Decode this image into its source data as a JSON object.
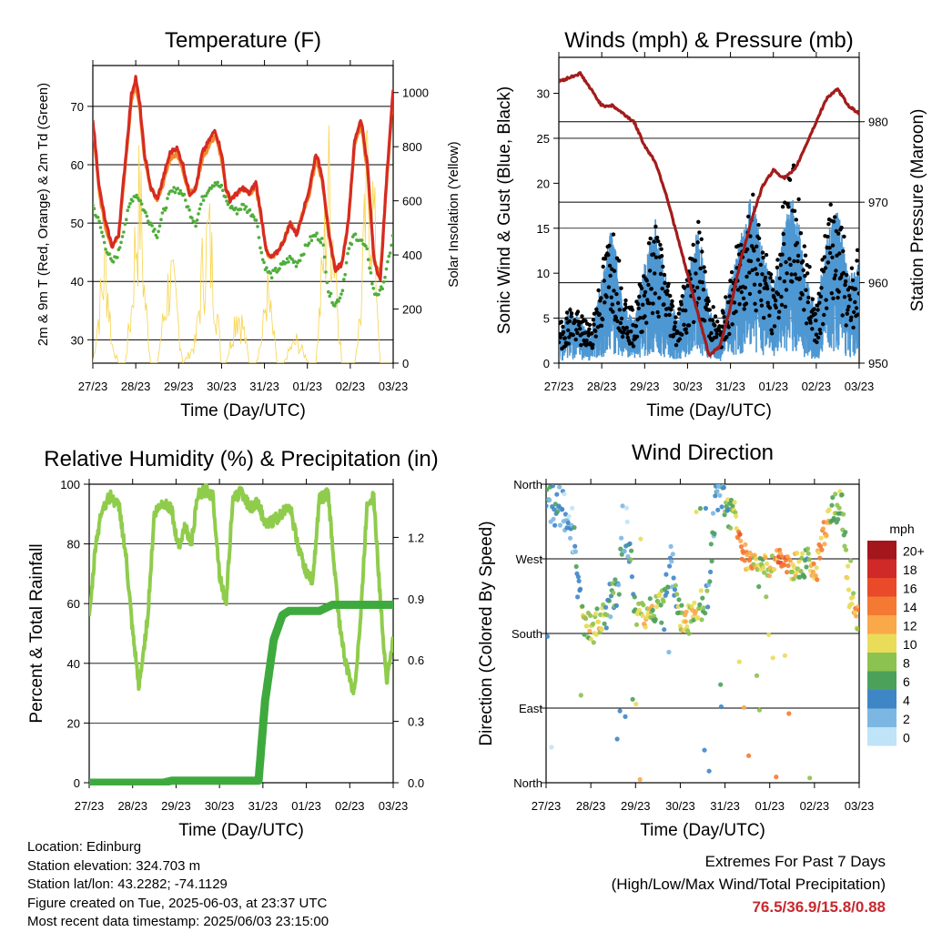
{
  "x_ticks": [
    "27/23",
    "28/23",
    "29/23",
    "30/23",
    "31/23",
    "01/23",
    "02/23",
    "03/23"
  ],
  "xlabel": "Time (Day/UTC)",
  "colors": {
    "temp_red": "#d62b22",
    "temp_orange": "#f08a2c",
    "dewpoint_green": "#4fae3b",
    "insolation_yellow": "#f7d44c",
    "wind_blue": "#4d97d2",
    "gust_black": "#000000",
    "pressure_maroon": "#a31c1c",
    "rh_lightgreen": "#8fcc4c",
    "precip_green": "#3eaa3e"
  },
  "chart_data": [
    {
      "id": "temperature",
      "type": "line",
      "title": "Temperature (F)",
      "ylabel_left": "2m & 9m T (Red, Orange) & 2m Td (Green)",
      "ylabel_right": "Solar Insolation (Yellow)",
      "xlabel": "Time (Day/UTC)",
      "ylim": [
        26,
        77
      ],
      "yticks": [
        30,
        40,
        50,
        60,
        70
      ],
      "y2lim": [
        0,
        1100
      ],
      "y2ticks": [
        0,
        200,
        400,
        600,
        800,
        1000
      ],
      "x": [
        0,
        0.15,
        0.3,
        0.45,
        0.6,
        0.75,
        0.9,
        1.0,
        1.1,
        1.2,
        1.35,
        1.5,
        1.65,
        1.8,
        1.95,
        2.1,
        2.25,
        2.4,
        2.55,
        2.7,
        2.85,
        3.0,
        3.1,
        3.2,
        3.35,
        3.5,
        3.65,
        3.8,
        3.95,
        4.05,
        4.15,
        4.3,
        4.45,
        4.6,
        4.75,
        4.9,
        5.05,
        5.2,
        5.35,
        5.5,
        5.65,
        5.8,
        5.95,
        6.1,
        6.25,
        6.4,
        6.55,
        6.7,
        6.85,
        7.0
      ],
      "series": [
        {
          "name": "2m T",
          "values": [
            68,
            56,
            50,
            46,
            48,
            60,
            72,
            75,
            70,
            62,
            56,
            54,
            58,
            62,
            63,
            60,
            55,
            56,
            62,
            64,
            66,
            62,
            56,
            54,
            55,
            56,
            55,
            57,
            50,
            45,
            44,
            45,
            47,
            50,
            48,
            52,
            56,
            62,
            58,
            48,
            42,
            43,
            50,
            64,
            68,
            60,
            44,
            40,
            58,
            73
          ]
        },
        {
          "name": "9m T",
          "values": [
            67,
            55,
            49,
            46,
            48,
            59,
            71,
            74,
            69,
            61,
            56,
            54,
            57,
            61,
            62,
            59,
            55,
            56,
            61,
            63,
            65,
            61,
            56,
            54,
            55,
            56,
            55,
            56,
            50,
            45,
            44,
            45,
            47,
            50,
            48,
            52,
            55,
            61,
            57,
            48,
            42,
            43,
            50,
            63,
            67,
            59,
            44,
            41,
            57,
            72
          ]
        },
        {
          "name": "2m Td",
          "values": [
            53,
            50,
            46,
            43,
            45,
            50,
            54,
            55,
            54,
            52,
            50,
            48,
            52,
            55,
            56,
            55,
            52,
            50,
            54,
            56,
            57,
            56,
            54,
            53,
            52,
            53,
            52,
            51,
            44,
            42,
            41,
            42,
            43,
            44,
            43,
            45,
            47,
            48,
            47,
            38,
            36,
            38,
            45,
            48,
            47,
            45,
            38,
            38,
            42,
            48
          ]
        },
        {
          "name": "Solar",
          "values": [
            0,
            300,
            550,
            100,
            0,
            0,
            300,
            700,
            900,
            400,
            0,
            0,
            250,
            480,
            300,
            0,
            50,
            120,
            500,
            700,
            400,
            0,
            0,
            100,
            300,
            200,
            0,
            0,
            150,
            400,
            250,
            0,
            0,
            80,
            120,
            60,
            0,
            0,
            500,
            950,
            600,
            0,
            0,
            0,
            300,
            1000,
            800,
            0,
            0,
            0
          ]
        }
      ]
    },
    {
      "id": "winds",
      "type": "scatter",
      "title": "Winds (mph) & Pressure (mb)",
      "ylabel_left": "Sonic Wind & Gust (Blue, Black)",
      "ylabel_right": "Station Pressure (Maroon)",
      "xlabel": "Time (Day/UTC)",
      "ylim": [
        0,
        34
      ],
      "yticks": [
        0,
        5,
        10,
        15,
        20,
        25,
        30
      ],
      "y2lim": [
        950,
        988
      ],
      "y2ticks": [
        950,
        960,
        970,
        980
      ],
      "x": [
        0,
        0.25,
        0.5,
        0.75,
        1.0,
        1.25,
        1.5,
        1.75,
        2.0,
        2.25,
        2.5,
        2.75,
        3.0,
        3.25,
        3.5,
        3.75,
        4.0,
        4.25,
        4.5,
        4.75,
        5.0,
        5.25,
        5.5,
        5.75,
        6.0,
        6.25,
        6.5,
        6.75,
        7.0
      ],
      "series": [
        {
          "name": "Wind",
          "values": [
            2,
            4,
            3,
            2,
            6,
            10,
            4,
            3,
            7,
            10,
            6,
            3,
            6,
            10,
            4,
            2,
            6,
            9,
            12,
            8,
            5,
            10,
            12,
            6,
            4,
            9,
            11,
            6,
            7
          ]
        },
        {
          "name": "Gust",
          "values": [
            4,
            6,
            5,
            4,
            10,
            15,
            8,
            5,
            11,
            15,
            10,
            5,
            10,
            15,
            7,
            4,
            9,
            14,
            19,
            13,
            8,
            17,
            21,
            12,
            6,
            15,
            18,
            10,
            12
          ]
        },
        {
          "name": "Pressure",
          "values": [
            985,
            985.5,
            986,
            984,
            982,
            982,
            981,
            980,
            977,
            975,
            971,
            966,
            961,
            956,
            951,
            952,
            957,
            963,
            968,
            972,
            974,
            973,
            974,
            977,
            980,
            983,
            984,
            982,
            981
          ]
        }
      ]
    },
    {
      "id": "humidity",
      "type": "line",
      "title": "Relative Humidity (%) & Precipitation (in)",
      "ylabel_left": "Percent & Total Rainfall",
      "xlabel": "Time (Day/UTC)",
      "ylim": [
        0,
        100
      ],
      "yticks": [
        0,
        20,
        40,
        60,
        80,
        100
      ],
      "y2lim": [
        0,
        1.46
      ],
      "y2ticks": [
        "0.0",
        "0.3",
        "0.6",
        "0.9",
        "1.2"
      ],
      "x": [
        0,
        0.15,
        0.3,
        0.5,
        0.7,
        0.85,
        1.0,
        1.15,
        1.35,
        1.5,
        1.7,
        1.9,
        2.0,
        2.1,
        2.2,
        2.35,
        2.5,
        2.7,
        2.85,
        3.0,
        3.15,
        3.3,
        3.5,
        3.7,
        3.9,
        4.05,
        4.25,
        4.45,
        4.6,
        4.8,
        5.0,
        5.15,
        5.3,
        5.5,
        5.6,
        5.75,
        5.9,
        6.1,
        6.25,
        6.4,
        6.55,
        6.7,
        6.85,
        7.0
      ],
      "series": [
        {
          "name": "RH",
          "values": [
            54,
            80,
            92,
            96,
            92,
            75,
            50,
            32,
            56,
            90,
            94,
            92,
            82,
            80,
            86,
            80,
            96,
            98,
            96,
            70,
            60,
            94,
            98,
            92,
            94,
            86,
            88,
            90,
            94,
            80,
            70,
            68,
            95,
            97,
            80,
            55,
            40,
            30,
            55,
            94,
            96,
            62,
            34,
            48
          ]
        },
        {
          "name": "Precip",
          "values": [
            0,
            0,
            0,
            0,
            0,
            0,
            0,
            0,
            0,
            0,
            0,
            0.01,
            0.01,
            0.01,
            0.01,
            0.01,
            0.01,
            0.01,
            0.01,
            0.01,
            0.01,
            0.01,
            0.01,
            0.01,
            0.01,
            0.4,
            0.7,
            0.82,
            0.84,
            0.84,
            0.84,
            0.84,
            0.84,
            0.86,
            0.87,
            0.87,
            0.87,
            0.87,
            0.87,
            0.87,
            0.87,
            0.87,
            0.87,
            0.87
          ]
        }
      ]
    },
    {
      "id": "direction",
      "type": "scatter",
      "title": "Wind Direction",
      "ylabel_left": "Direction (Colored By Speed)",
      "xlabel": "Time (Day/UTC)",
      "ylim": [
        0,
        360
      ],
      "ytick_labels": [
        "North",
        "East",
        "South",
        "West",
        "North"
      ],
      "legend_title": "mph",
      "legend_labels": [
        "20+",
        "18",
        "16",
        "14",
        "12",
        "10",
        "8",
        "6",
        "4",
        "2",
        "0"
      ],
      "legend_colors": [
        "#a3161c",
        "#cf2a27",
        "#e84a2a",
        "#f47a33",
        "#f9a84a",
        "#e9dc59",
        "#8cc24f",
        "#4ba15a",
        "#3f86c7",
        "#7cb7e4",
        "#bfe3f7"
      ],
      "x": [
        0,
        0.2,
        0.4,
        0.6,
        0.8,
        1.0,
        1.2,
        1.4,
        1.6,
        1.8,
        2.0,
        2.2,
        2.4,
        2.6,
        2.8,
        3.0,
        3.2,
        3.4,
        3.6,
        3.8,
        4.0,
        4.2,
        4.4,
        4.6,
        4.8,
        5.0,
        5.2,
        5.4,
        5.6,
        5.8,
        6.0,
        6.2,
        6.4,
        6.6,
        6.8,
        7.0
      ],
      "series": [
        {
          "name": "Direction",
          "values": [
            340,
            335,
            330,
            300,
            200,
            185,
            190,
            215,
            235,
            315,
            210,
            195,
            205,
            215,
            270,
            200,
            195,
            210,
            225,
            340,
            335,
            320,
            275,
            270,
            255,
            262,
            270,
            265,
            262,
            270,
            255,
            300,
            330,
            335,
            215,
            200
          ]
        },
        {
          "name": "Speed",
          "values": [
            3,
            4,
            3,
            2,
            8,
            10,
            9,
            6,
            4,
            2,
            8,
            10,
            9,
            7,
            4,
            8,
            10,
            9,
            6,
            3,
            5,
            10,
            14,
            12,
            8,
            10,
            14,
            12,
            9,
            6,
            12,
            12,
            8,
            6,
            10,
            12
          ]
        }
      ]
    }
  ],
  "info": {
    "location": "Location: Edinburg",
    "elevation": "Station elevation: 324.703 m",
    "latlon": "Station lat/lon: 43.2282; -74.1129",
    "created": "Figure created on Tue, 2025-06-03, at 23:37 UTC",
    "recent": "Most recent data timestamp: 2025/06/03 23:15:00"
  },
  "extremes": {
    "line1": "Extremes For Past 7 Days",
    "line2": "(High/Low/Max Wind/Total Precipitation)",
    "values": "76.5/36.9/15.8/0.88"
  }
}
